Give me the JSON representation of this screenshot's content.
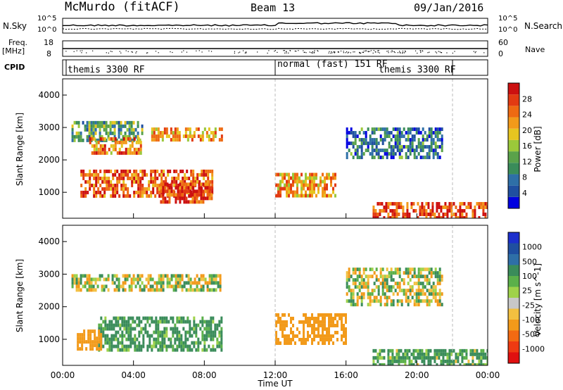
{
  "header": {
    "station": "McMurdo (fitACF)",
    "beam": "Beam 13",
    "date": "09/Jan/2016"
  },
  "strip_labels": {
    "nsky": "N.Sky",
    "nsky_ticks": [
      "10^5",
      "10^0"
    ],
    "nsearch": "N.Search",
    "nsearch_ticks": [
      "10^5",
      "10^0"
    ],
    "freq_line1": "Freq.",
    "freq_line2": "[MHz]",
    "freq_ticks": [
      "18",
      "8"
    ],
    "nave": "Nave",
    "nave_ticks": [
      "60",
      "0"
    ],
    "cpid": "CPID"
  },
  "cpid_segments": [
    {
      "label": "themis 3300 RF",
      "start_h": 0,
      "end_h": 12
    },
    {
      "label": "normal (fast) 151 RF",
      "start_h": 12,
      "end_h": 21.2
    },
    {
      "label": "themis 3300 RF",
      "start_h": 21.2,
      "end_h": 24
    }
  ],
  "colors": {
    "power_scale": [
      "#0000e0",
      "#1f4fa0",
      "#2e6fa7",
      "#3a8c5a",
      "#5aa24a",
      "#9bc83a",
      "#e6c520",
      "#f29a1a",
      "#ee6a12",
      "#e23a12",
      "#cc1010"
    ],
    "velocity_scale": [
      "#e01010",
      "#ee3a12",
      "#f26a12",
      "#f29a1a",
      "#f2c040",
      "#c8c8c8",
      "#9fd24a",
      "#5bb04a",
      "#3a8c5a",
      "#2e6fa7",
      "#1f4fa0",
      "#1c2fcc"
    ]
  },
  "chart_data": [
    {
      "type": "heatmap",
      "name": "power",
      "xlabel": "",
      "ylabel": "Slant Range [km]",
      "ytick_labels": [
        "1000",
        "2000",
        "3000",
        "4000"
      ],
      "ylim": [
        200,
        4500
      ],
      "xlim": [
        0,
        24
      ],
      "colorbar_label": "Power [dB]",
      "colorbar_ticks": [
        "4",
        "8",
        "12",
        "16",
        "20",
        "24",
        "28"
      ],
      "colorbar_range": [
        0,
        32
      ],
      "echo_regions": [
        {
          "t0": 0.5,
          "t1": 4.5,
          "r0": 2500,
          "r1": 3200,
          "p": 12
        },
        {
          "t0": 1.5,
          "t1": 4.5,
          "r0": 2200,
          "r1": 2700,
          "p": 24
        },
        {
          "t0": 5.0,
          "t1": 9.0,
          "r0": 2600,
          "r1": 3000,
          "p": 22
        },
        {
          "t0": 1.0,
          "t1": 8.5,
          "r0": 800,
          "r1": 1700,
          "p": 26
        },
        {
          "t0": 5.5,
          "t1": 8.5,
          "r0": 600,
          "r1": 1300,
          "p": 28
        },
        {
          "t0": 12.0,
          "t1": 15.5,
          "r0": 800,
          "r1": 1600,
          "p": 22
        },
        {
          "t0": 16.0,
          "t1": 21.5,
          "r0": 2000,
          "r1": 3000,
          "p": 8
        },
        {
          "t0": 17.5,
          "t1": 24.0,
          "r0": 200,
          "r1": 700,
          "p": 28
        }
      ]
    },
    {
      "type": "heatmap",
      "name": "velocity",
      "xlabel": "Time UT",
      "ylabel": "Slant Range [km]",
      "ytick_labels": [
        "1000",
        "2000",
        "3000",
        "4000"
      ],
      "ylim": [
        200,
        4500
      ],
      "xlim": [
        0,
        24
      ],
      "xtick_labels": [
        "00:00",
        "04:00",
        "08:00",
        "12:00",
        "16:00",
        "20:00",
        "00:00"
      ],
      "colorbar_label": "Velocity [m s^-1]",
      "colorbar_ticks": [
        "-1000",
        "-500",
        "-100",
        "-25",
        "25",
        "100",
        "500",
        "1000"
      ],
      "echo_regions": [
        {
          "t0": 0.5,
          "t1": 9.0,
          "r0": 2500,
          "r1": 3000,
          "v": 0
        },
        {
          "t0": 2.0,
          "t1": 9.0,
          "r0": 600,
          "r1": 1700,
          "v": 200
        },
        {
          "t0": 0.8,
          "t1": 2.2,
          "r0": 700,
          "r1": 1300,
          "v": -300
        },
        {
          "t0": 12.0,
          "t1": 16.0,
          "r0": 800,
          "r1": 1800,
          "v": -300
        },
        {
          "t0": 16.0,
          "t1": 21.5,
          "r0": 2000,
          "r1": 3200,
          "v": 0
        },
        {
          "t0": 17.5,
          "t1": 24.0,
          "r0": 200,
          "r1": 700,
          "v": 150
        }
      ]
    }
  ]
}
